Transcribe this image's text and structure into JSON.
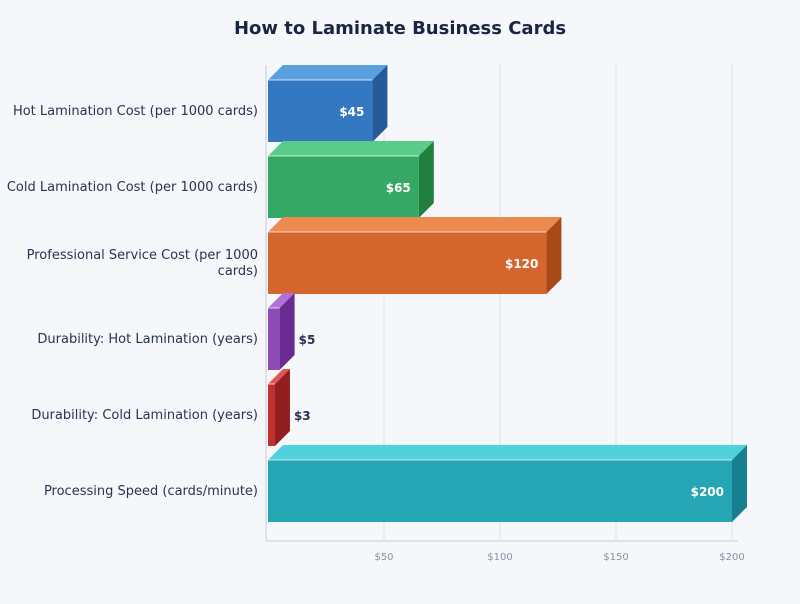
{
  "chart_data": {
    "type": "bar",
    "orientation": "horizontal",
    "style": "3d",
    "title": "How to Laminate Business Cards",
    "xlabel": "",
    "ylabel": "",
    "xlim": [
      0,
      200
    ],
    "grid": true,
    "x_ticks": [
      "$50",
      "$100",
      "$150",
      "$200"
    ],
    "x_tick_values": [
      50,
      100,
      150,
      200
    ],
    "categories": [
      "Hot Lamination Cost (per 1000 cards)",
      "Cold Lamination Cost (per 1000 cards)",
      "Professional Service Cost (per 1000 cards)",
      "Durability: Hot Lamination (years)",
      "Durability: Cold Lamination (years)",
      "Processing Speed (cards/minute)"
    ],
    "values": [
      45,
      65,
      120,
      5,
      3,
      200
    ],
    "data_labels": [
      "$45",
      "$65",
      "$120",
      "$5",
      "$3",
      "$200"
    ],
    "colors": [
      {
        "front": "#3478c2",
        "top": "#5aa0e0",
        "side": "#245a98"
      },
      {
        "front": "#36a866",
        "top": "#58cc88",
        "side": "#22803f"
      },
      {
        "front": "#d4652c",
        "top": "#ec8a50",
        "side": "#a84a18"
      },
      {
        "front": "#8e4cb8",
        "top": "#b072d8",
        "side": "#6a2c92"
      },
      {
        "front": "#c0302e",
        "top": "#e05654",
        "side": "#921e1e"
      },
      {
        "front": "#26a5b5",
        "top": "#50d2dc",
        "side": "#168090"
      }
    ]
  }
}
